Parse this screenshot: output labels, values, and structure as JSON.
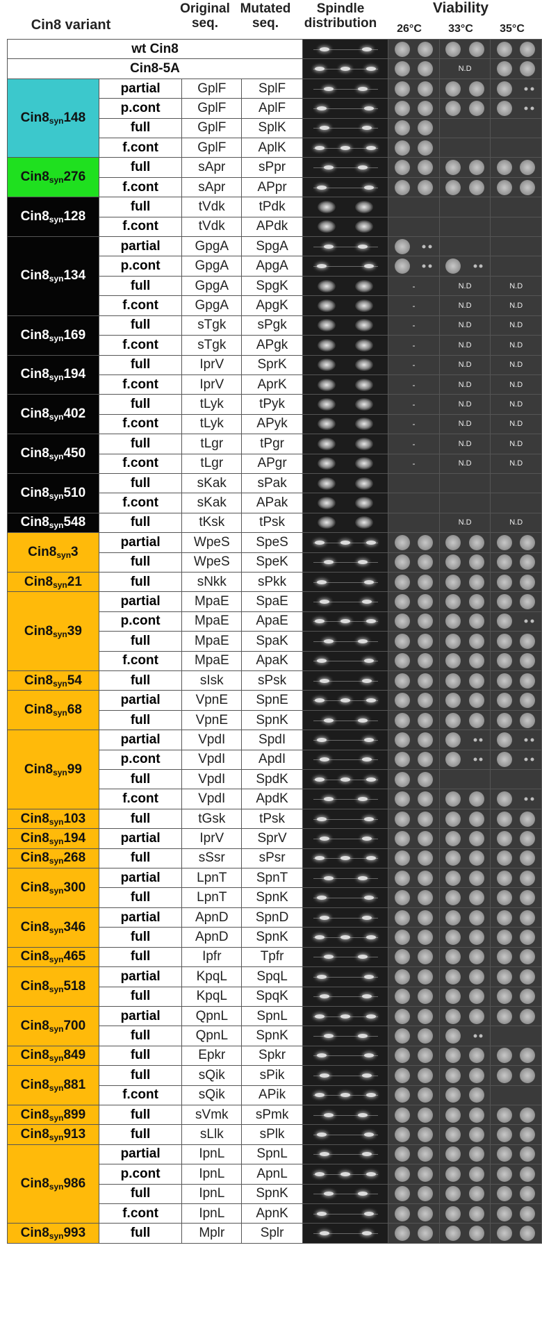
{
  "headers": {
    "variant": "Cin8 variant",
    "original": "Original seq.",
    "mutated": "Mutated seq.",
    "spindle": "Spindle distribution",
    "viability": "Viability",
    "temps": [
      "26°C",
      "33°C",
      "35°C"
    ]
  },
  "not_done": "N.D",
  "rows": [
    {
      "variant": "wt Cin8",
      "type": "",
      "orig": "",
      "mut": "",
      "v": [
        2,
        2,
        2
      ],
      "sp": "n"
    },
    {
      "variant": "Cin8-5A",
      "type": "",
      "orig": "",
      "mut": "",
      "v": [
        2,
        "nd",
        2
      ],
      "sp": "n"
    },
    {
      "variant": "Cin8syn148",
      "type": "partial",
      "orig": "GplF",
      "mut": "SplF",
      "v": [
        2,
        2,
        1
      ],
      "sp": "n"
    },
    {
      "variant": "Cin8syn148",
      "type": "p.cont",
      "orig": "GplF",
      "mut": "AplF",
      "v": [
        2,
        2,
        1
      ],
      "sp": "n"
    },
    {
      "variant": "Cin8syn148",
      "type": "full",
      "orig": "GplF",
      "mut": "SplK",
      "v": [
        2,
        0,
        0
      ],
      "sp": "n"
    },
    {
      "variant": "Cin8syn148",
      "type": "f.cont",
      "orig": "GplF",
      "mut": "AplK",
      "v": [
        2,
        0,
        0
      ],
      "sp": "n"
    },
    {
      "variant": "Cin8syn276",
      "type": "full",
      "orig": "sApr",
      "mut": "sPpr",
      "v": [
        2,
        2,
        2
      ],
      "sp": "n"
    },
    {
      "variant": "Cin8syn276",
      "type": "f.cont",
      "orig": "sApr",
      "mut": "APpr",
      "v": [
        2,
        2,
        2
      ],
      "sp": "n"
    },
    {
      "variant": "Cin8syn128",
      "type": "full",
      "orig": "tVdk",
      "mut": "tPdk",
      "v": [
        0,
        0,
        0
      ],
      "sp": "d"
    },
    {
      "variant": "Cin8syn128",
      "type": "f.cont",
      "orig": "tVdk",
      "mut": "APdk",
      "v": [
        0,
        0,
        0
      ],
      "sp": "d"
    },
    {
      "variant": "Cin8syn134",
      "type": "partial",
      "orig": "GpgA",
      "mut": "SpgA",
      "v": [
        1,
        0,
        0
      ],
      "sp": "n"
    },
    {
      "variant": "Cin8syn134",
      "type": "p.cont",
      "orig": "GpgA",
      "mut": "ApgA",
      "v": [
        1,
        1,
        0
      ],
      "sp": "n"
    },
    {
      "variant": "Cin8syn134",
      "type": "full",
      "orig": "GpgA",
      "mut": "SpgK",
      "v": [
        "-",
        "nd",
        "nd"
      ],
      "sp": "d"
    },
    {
      "variant": "Cin8syn134",
      "type": "f.cont",
      "orig": "GpgA",
      "mut": "ApgK",
      "v": [
        "-",
        "nd",
        "nd"
      ],
      "sp": "d"
    },
    {
      "variant": "Cin8syn169",
      "type": "full",
      "orig": "sTgk",
      "mut": "sPgk",
      "v": [
        "-",
        "nd",
        "nd"
      ],
      "sp": "d"
    },
    {
      "variant": "Cin8syn169",
      "type": "f.cont",
      "orig": "sTgk",
      "mut": "APgk",
      "v": [
        "-",
        "nd",
        "nd"
      ],
      "sp": "d"
    },
    {
      "variant": "Cin8syn194",
      "type": "full",
      "orig": "IprV",
      "mut": "SprK",
      "v": [
        "-",
        "nd",
        "nd"
      ],
      "sp": "d"
    },
    {
      "variant": "Cin8syn194",
      "type": "f.cont",
      "orig": "IprV",
      "mut": "AprK",
      "v": [
        "-",
        "nd",
        "nd"
      ],
      "sp": "d"
    },
    {
      "variant": "Cin8syn402",
      "type": "full",
      "orig": "tLyk",
      "mut": "tPyk",
      "v": [
        "-",
        "nd",
        "nd"
      ],
      "sp": "d"
    },
    {
      "variant": "Cin8syn402",
      "type": "f.cont",
      "orig": "tLyk",
      "mut": "APyk",
      "v": [
        "-",
        "nd",
        "nd"
      ],
      "sp": "d"
    },
    {
      "variant": "Cin8syn450",
      "type": "full",
      "orig": "tLgr",
      "mut": "tPgr",
      "v": [
        "-",
        "nd",
        "nd"
      ],
      "sp": "d"
    },
    {
      "variant": "Cin8syn450",
      "type": "f.cont",
      "orig": "tLgr",
      "mut": "APgr",
      "v": [
        "-",
        "nd",
        "nd"
      ],
      "sp": "d"
    },
    {
      "variant": "Cin8syn510",
      "type": "full",
      "orig": "sKak",
      "mut": "sPak",
      "v": [
        0,
        0,
        0
      ],
      "sp": "d"
    },
    {
      "variant": "Cin8syn510",
      "type": "f.cont",
      "orig": "sKak",
      "mut": "APak",
      "v": [
        0,
        0,
        0
      ],
      "sp": "d"
    },
    {
      "variant": "Cin8syn548",
      "type": "full",
      "orig": "tKsk",
      "mut": "tPsk",
      "v": [
        0,
        "nd",
        "nd"
      ],
      "sp": "d"
    },
    {
      "variant": "Cin8syn3",
      "type": "partial",
      "orig": "WpeS",
      "mut": "SpeS",
      "v": [
        2,
        2,
        2
      ],
      "sp": "n"
    },
    {
      "variant": "Cin8syn3",
      "type": "full",
      "orig": "WpeS",
      "mut": "SpeK",
      "v": [
        2,
        2,
        2
      ],
      "sp": "n"
    },
    {
      "variant": "Cin8syn21",
      "type": "full",
      "orig": "sNkk",
      "mut": "sPkk",
      "v": [
        2,
        2,
        2
      ],
      "sp": "n"
    },
    {
      "variant": "Cin8syn39",
      "type": "partial",
      "orig": "MpaE",
      "mut": "SpaE",
      "v": [
        2,
        2,
        2
      ],
      "sp": "n"
    },
    {
      "variant": "Cin8syn39",
      "type": "p.cont",
      "orig": "MpaE",
      "mut": "ApaE",
      "v": [
        2,
        2,
        1
      ],
      "sp": "n"
    },
    {
      "variant": "Cin8syn39",
      "type": "full",
      "orig": "MpaE",
      "mut": "SpaK",
      "v": [
        2,
        2,
        2
      ],
      "sp": "n"
    },
    {
      "variant": "Cin8syn39",
      "type": "f.cont",
      "orig": "MpaE",
      "mut": "ApaK",
      "v": [
        2,
        2,
        2
      ],
      "sp": "n"
    },
    {
      "variant": "Cin8syn54",
      "type": "full",
      "orig": "sIsk",
      "mut": "sPsk",
      "v": [
        2,
        2,
        2
      ],
      "sp": "n"
    },
    {
      "variant": "Cin8syn68",
      "type": "partial",
      "orig": "VpnE",
      "mut": "SpnE",
      "v": [
        2,
        2,
        2
      ],
      "sp": "n"
    },
    {
      "variant": "Cin8syn68",
      "type": "full",
      "orig": "VpnE",
      "mut": "SpnK",
      "v": [
        2,
        2,
        2
      ],
      "sp": "n"
    },
    {
      "variant": "Cin8syn99",
      "type": "partial",
      "orig": "VpdI",
      "mut": "SpdI",
      "v": [
        2,
        1,
        1
      ],
      "sp": "n"
    },
    {
      "variant": "Cin8syn99",
      "type": "p.cont",
      "orig": "VpdI",
      "mut": "ApdI",
      "v": [
        2,
        1,
        1
      ],
      "sp": "n"
    },
    {
      "variant": "Cin8syn99",
      "type": "full",
      "orig": "VpdI",
      "mut": "SpdK",
      "v": [
        2,
        0,
        0
      ],
      "sp": "n"
    },
    {
      "variant": "Cin8syn99",
      "type": "f.cont",
      "orig": "VpdI",
      "mut": "ApdK",
      "v": [
        2,
        2,
        1
      ],
      "sp": "n"
    },
    {
      "variant": "Cin8syn103",
      "type": "full",
      "orig": "tGsk",
      "mut": "tPsk",
      "v": [
        2,
        2,
        2
      ],
      "sp": "n"
    },
    {
      "variant": "Cin8syn194",
      "type": "partial",
      "orig": "IprV",
      "mut": "SprV",
      "v": [
        2,
        2,
        2
      ],
      "sp": "n"
    },
    {
      "variant": "Cin8syn268",
      "type": "full",
      "orig": "sSsr",
      "mut": "sPsr",
      "v": [
        2,
        2,
        2
      ],
      "sp": "n"
    },
    {
      "variant": "Cin8syn300",
      "type": "partial",
      "orig": "LpnT",
      "mut": "SpnT",
      "v": [
        2,
        2,
        2
      ],
      "sp": "n"
    },
    {
      "variant": "Cin8syn300",
      "type": "full",
      "orig": "LpnT",
      "mut": "SpnK",
      "v": [
        2,
        2,
        2
      ],
      "sp": "n"
    },
    {
      "variant": "Cin8syn346",
      "type": "partial",
      "orig": "ApnD",
      "mut": "SpnD",
      "v": [
        2,
        2,
        2
      ],
      "sp": "n"
    },
    {
      "variant": "Cin8syn346",
      "type": "full",
      "orig": "ApnD",
      "mut": "SpnK",
      "v": [
        2,
        2,
        2
      ],
      "sp": "n"
    },
    {
      "variant": "Cin8syn465",
      "type": "full",
      "orig": "Ipfr",
      "mut": "Tpfr",
      "v": [
        2,
        2,
        2
      ],
      "sp": "n"
    },
    {
      "variant": "Cin8syn518",
      "type": "partial",
      "orig": "KpqL",
      "mut": "SpqL",
      "v": [
        2,
        2,
        2
      ],
      "sp": "n"
    },
    {
      "variant": "Cin8syn518",
      "type": "full",
      "orig": "KpqL",
      "mut": "SpqK",
      "v": [
        2,
        2,
        2
      ],
      "sp": "n"
    },
    {
      "variant": "Cin8syn700",
      "type": "partial",
      "orig": "QpnL",
      "mut": "SpnL",
      "v": [
        2,
        2,
        2
      ],
      "sp": "n"
    },
    {
      "variant": "Cin8syn700",
      "type": "full",
      "orig": "QpnL",
      "mut": "SpnK",
      "v": [
        2,
        1,
        0
      ],
      "sp": "n"
    },
    {
      "variant": "Cin8syn849",
      "type": "full",
      "orig": "Epkr",
      "mut": "Spkr",
      "v": [
        2,
        2,
        2
      ],
      "sp": "n"
    },
    {
      "variant": "Cin8syn881",
      "type": "full",
      "orig": "sQik",
      "mut": "sPik",
      "v": [
        2,
        2,
        2
      ],
      "sp": "n"
    },
    {
      "variant": "Cin8syn881",
      "type": "f.cont",
      "orig": "sQik",
      "mut": "APik",
      "v": [
        2,
        2,
        0
      ],
      "sp": "n"
    },
    {
      "variant": "Cin8syn899",
      "type": "full",
      "orig": "sVmk",
      "mut": "sPmk",
      "v": [
        2,
        2,
        2
      ],
      "sp": "n"
    },
    {
      "variant": "Cin8syn913",
      "type": "full",
      "orig": "sLlk",
      "mut": "sPlk",
      "v": [
        2,
        2,
        2
      ],
      "sp": "n"
    },
    {
      "variant": "Cin8syn986",
      "type": "partial",
      "orig": "IpnL",
      "mut": "SpnL",
      "v": [
        2,
        2,
        2
      ],
      "sp": "n"
    },
    {
      "variant": "Cin8syn986",
      "type": "p.cont",
      "orig": "IpnL",
      "mut": "ApnL",
      "v": [
        2,
        2,
        2
      ],
      "sp": "n"
    },
    {
      "variant": "Cin8syn986",
      "type": "full",
      "orig": "IpnL",
      "mut": "SpnK",
      "v": [
        2,
        2,
        2
      ],
      "sp": "n"
    },
    {
      "variant": "Cin8syn986",
      "type": "f.cont",
      "orig": "IpnL",
      "mut": "ApnK",
      "v": [
        2,
        2,
        2
      ],
      "sp": "n"
    },
    {
      "variant": "Cin8syn993",
      "type": "full",
      "orig": "Mplr",
      "mut": "Splr",
      "v": [
        2,
        2,
        2
      ],
      "sp": "n"
    }
  ],
  "groups": [
    {
      "base": "wt Cin8",
      "sub": "",
      "num": "",
      "start": 0,
      "span": 1,
      "color": "white"
    },
    {
      "base": "Cin8-5A",
      "sub": "",
      "num": "",
      "start": 1,
      "span": 1,
      "color": "white"
    },
    {
      "base": "Cin8",
      "sub": "syn",
      "num": "148",
      "start": 2,
      "span": 4,
      "color": "cyan"
    },
    {
      "base": "Cin8",
      "sub": "syn",
      "num": "276",
      "start": 6,
      "span": 2,
      "color": "green"
    },
    {
      "base": "Cin8",
      "sub": "syn",
      "num": "128",
      "start": 8,
      "span": 2,
      "color": "black"
    },
    {
      "base": "Cin8",
      "sub": "syn",
      "num": "134",
      "start": 10,
      "span": 4,
      "color": "black"
    },
    {
      "base": "Cin8",
      "sub": "syn",
      "num": "169",
      "start": 14,
      "span": 2,
      "color": "black"
    },
    {
      "base": "Cin8",
      "sub": "syn",
      "num": "194",
      "start": 16,
      "span": 2,
      "color": "black"
    },
    {
      "base": "Cin8",
      "sub": "syn",
      "num": "402",
      "start": 18,
      "span": 2,
      "color": "black"
    },
    {
      "base": "Cin8",
      "sub": "syn",
      "num": "450",
      "start": 20,
      "span": 2,
      "color": "black"
    },
    {
      "base": "Cin8",
      "sub": "syn",
      "num": "510",
      "start": 22,
      "span": 2,
      "color": "black"
    },
    {
      "base": "Cin8",
      "sub": "syn",
      "num": "548",
      "start": 24,
      "span": 1,
      "color": "black"
    },
    {
      "base": "Cin8",
      "sub": "syn",
      "num": "3",
      "start": 25,
      "span": 2,
      "color": "orange"
    },
    {
      "base": "Cin8",
      "sub": "syn",
      "num": "21",
      "start": 27,
      "span": 1,
      "color": "orange"
    },
    {
      "base": "Cin8",
      "sub": "syn",
      "num": "39",
      "start": 28,
      "span": 4,
      "color": "orange"
    },
    {
      "base": "Cin8",
      "sub": "syn",
      "num": "54",
      "start": 32,
      "span": 1,
      "color": "orange"
    },
    {
      "base": "Cin8",
      "sub": "syn",
      "num": "68",
      "start": 33,
      "span": 2,
      "color": "orange"
    },
    {
      "base": "Cin8",
      "sub": "syn",
      "num": "99",
      "start": 35,
      "span": 4,
      "color": "orange"
    },
    {
      "base": "Cin8",
      "sub": "syn",
      "num": "103",
      "start": 39,
      "span": 1,
      "color": "orange"
    },
    {
      "base": "Cin8",
      "sub": "syn",
      "num": "194",
      "start": 40,
      "span": 1,
      "color": "orange"
    },
    {
      "base": "Cin8",
      "sub": "syn",
      "num": "268",
      "start": 41,
      "span": 1,
      "color": "orange"
    },
    {
      "base": "Cin8",
      "sub": "syn",
      "num": "300",
      "start": 42,
      "span": 2,
      "color": "orange"
    },
    {
      "base": "Cin8",
      "sub": "syn",
      "num": "346",
      "start": 44,
      "span": 2,
      "color": "orange"
    },
    {
      "base": "Cin8",
      "sub": "syn",
      "num": "465",
      "start": 46,
      "span": 1,
      "color": "orange"
    },
    {
      "base": "Cin8",
      "sub": "syn",
      "num": "518",
      "start": 47,
      "span": 2,
      "color": "orange"
    },
    {
      "base": "Cin8",
      "sub": "syn",
      "num": "700",
      "start": 49,
      "span": 2,
      "color": "orange"
    },
    {
      "base": "Cin8",
      "sub": "syn",
      "num": "849",
      "start": 51,
      "span": 1,
      "color": "orange"
    },
    {
      "base": "Cin8",
      "sub": "syn",
      "num": "881",
      "start": 52,
      "span": 2,
      "color": "orange"
    },
    {
      "base": "Cin8",
      "sub": "syn",
      "num": "899",
      "start": 54,
      "span": 1,
      "color": "orange"
    },
    {
      "base": "Cin8",
      "sub": "syn",
      "num": "913",
      "start": 55,
      "span": 1,
      "color": "orange"
    },
    {
      "base": "Cin8",
      "sub": "syn",
      "num": "986",
      "start": 56,
      "span": 4,
      "color": "orange"
    },
    {
      "base": "Cin8",
      "sub": "syn",
      "num": "993",
      "start": 60,
      "span": 1,
      "color": "orange"
    }
  ]
}
